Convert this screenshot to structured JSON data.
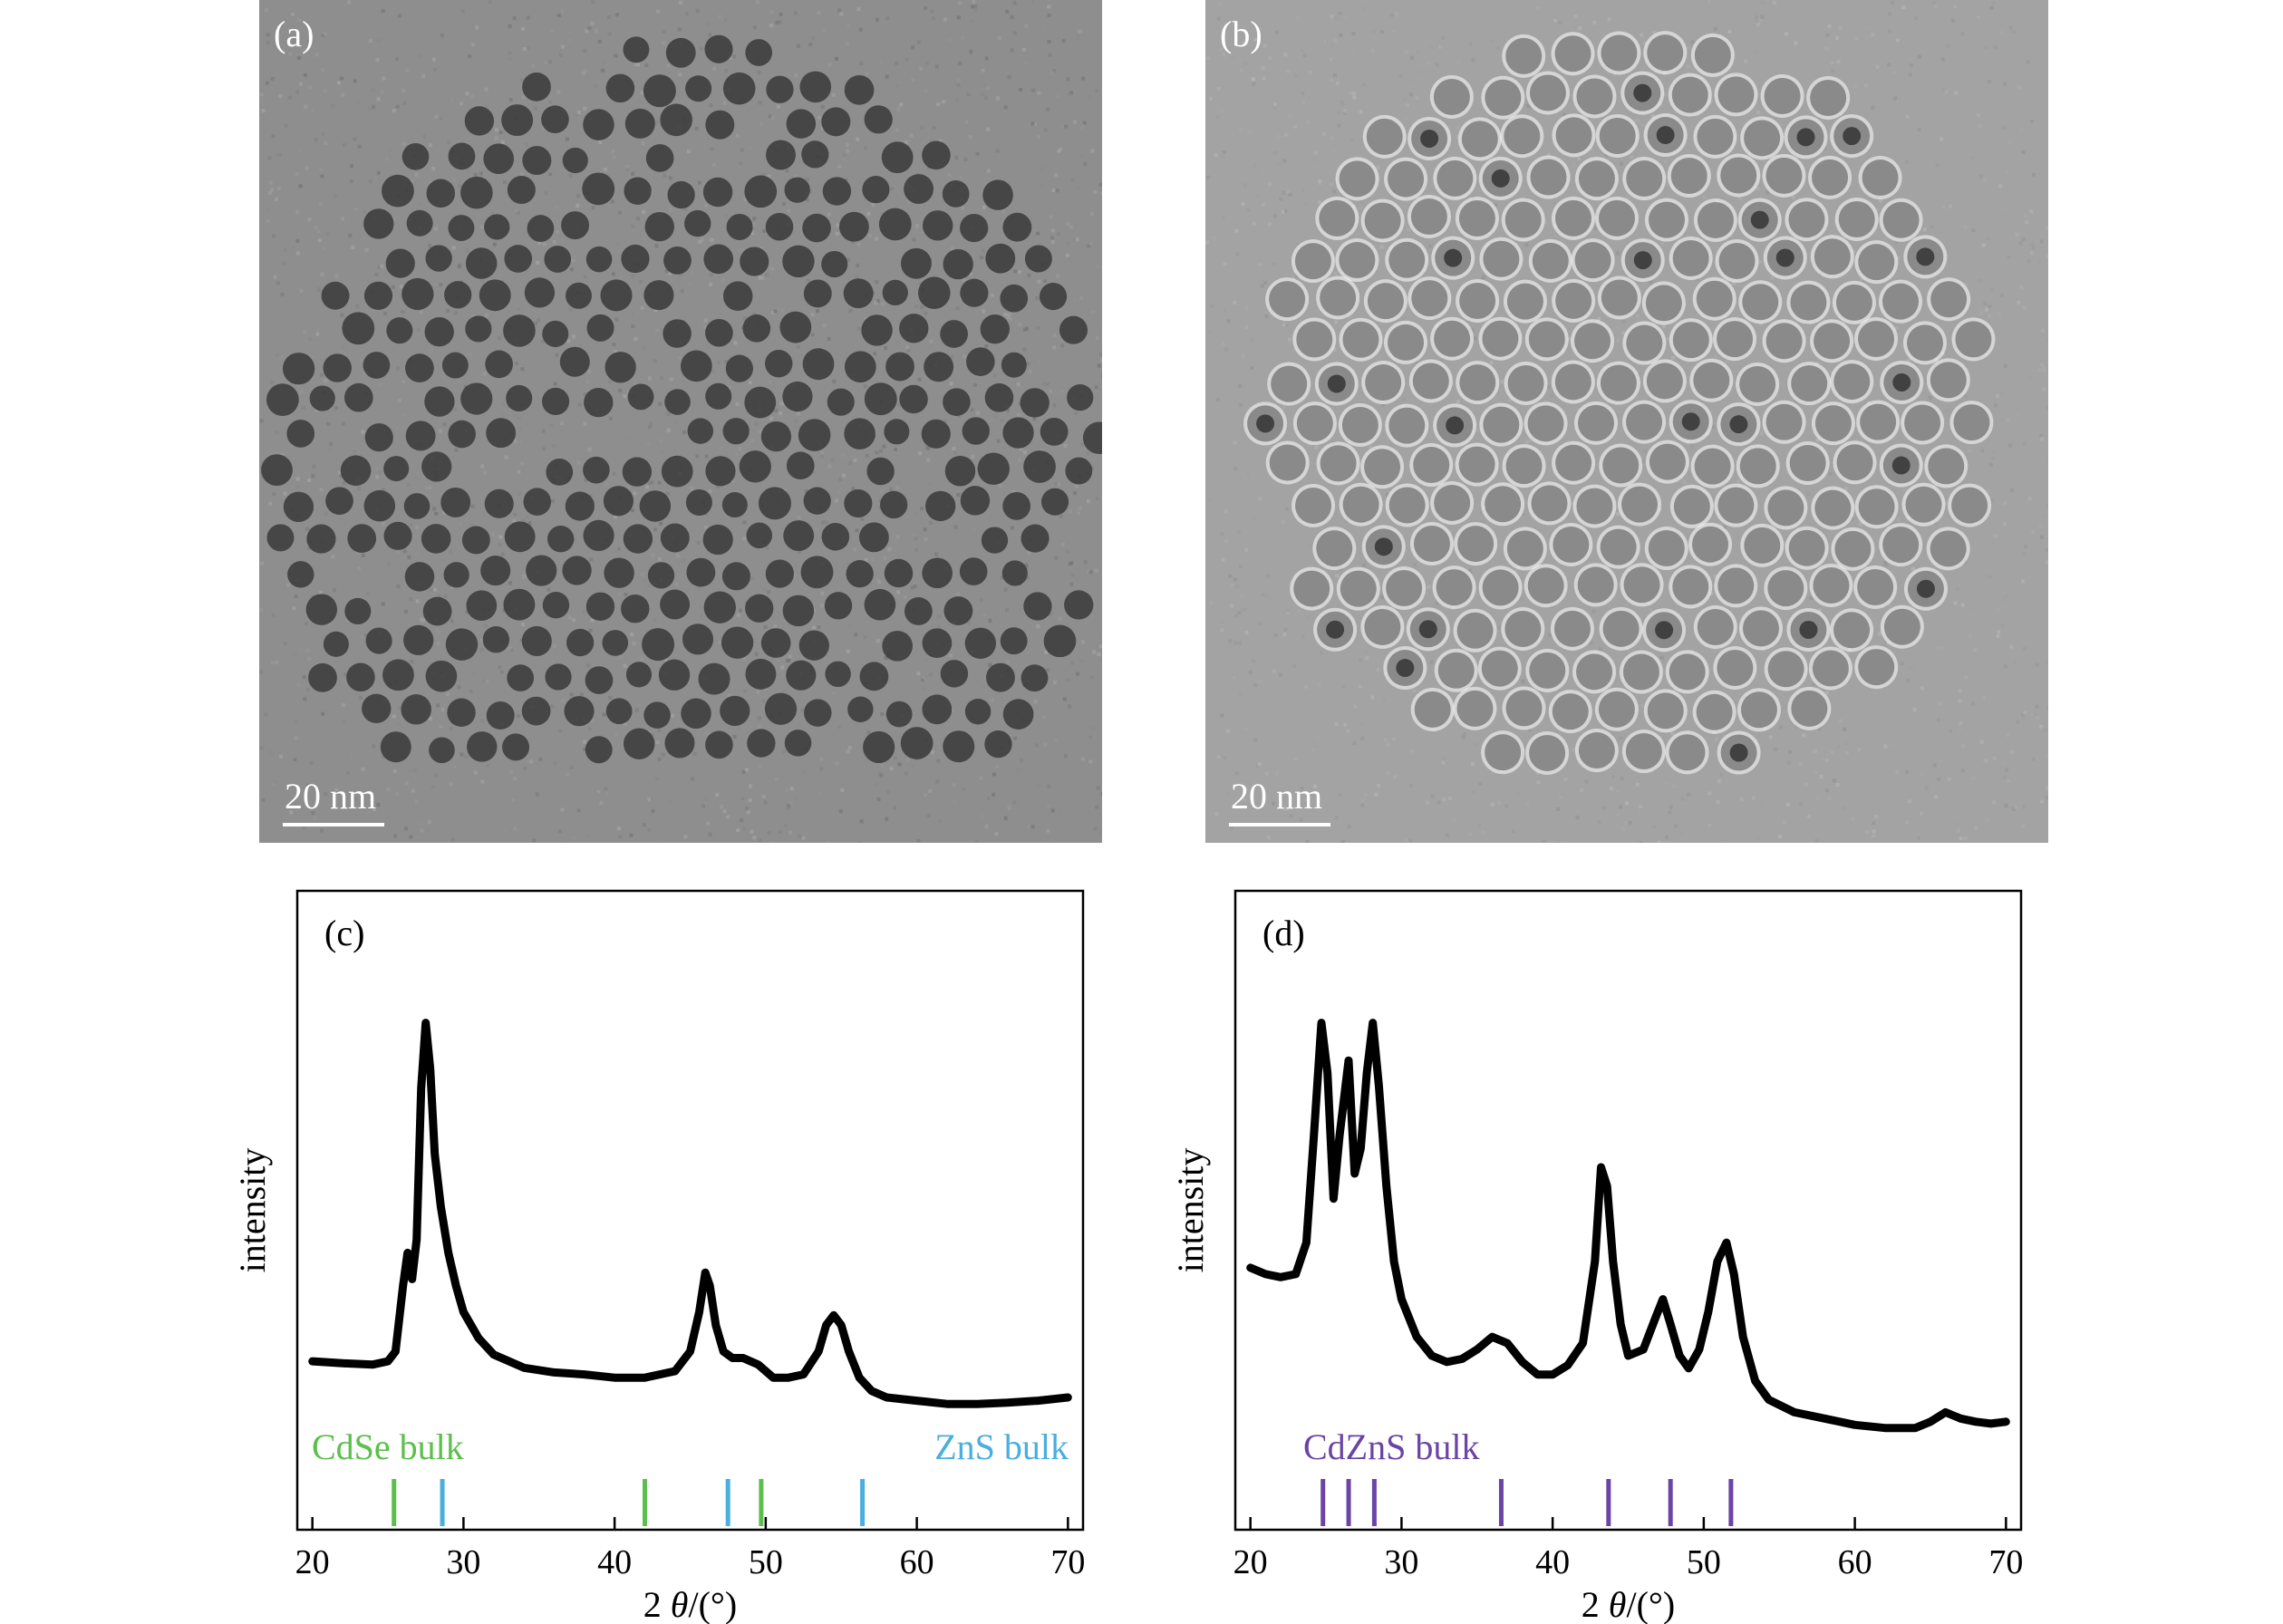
{
  "tem_panels": [
    {
      "label": "(a)",
      "scale_text": "20 nm"
    },
    {
      "label": "(b)",
      "scale_text": "20 nm"
    }
  ],
  "chart_data": [
    {
      "panel": "(c)",
      "type": "line",
      "xlabel_prefix": "2 ",
      "xlabel_italic": "θ",
      "xlabel_suffix": "/(°)",
      "ylabel": "intensity",
      "xlim": [
        19,
        71
      ],
      "xticks": [
        20,
        30,
        40,
        50,
        60,
        70
      ],
      "series": [
        {
          "x": [
            20,
            22,
            24,
            25,
            25.5,
            26,
            26.3,
            26.6,
            26.9,
            27.2,
            27.5,
            27.8,
            28.1,
            28.5,
            29,
            29.5,
            30,
            31,
            32,
            34,
            36,
            38,
            40,
            42,
            44,
            45,
            45.6,
            46,
            46.3,
            46.7,
            47.2,
            47.8,
            48.5,
            49.5,
            50.5,
            51.5,
            52.5,
            53.5,
            54,
            54.5,
            55,
            55.5,
            56.2,
            57,
            58,
            60,
            62,
            64,
            66,
            68,
            70
          ],
          "y": [
            13.5,
            13.2,
            13,
            13.5,
            15,
            25,
            30,
            26,
            32,
            55,
            65,
            58,
            45,
            37,
            30,
            25,
            21,
            17,
            14.5,
            12.5,
            11.8,
            11.5,
            11,
            11,
            12,
            15,
            21,
            27,
            25,
            19,
            15,
            14,
            14,
            13,
            11,
            11,
            11.5,
            15,
            19,
            20.5,
            19,
            15,
            11,
            9,
            8,
            7.5,
            7,
            7,
            7.2,
            7.5,
            8
          ]
        }
      ],
      "references": [
        {
          "name": "CdSe bulk",
          "color": "#5cbf4c",
          "positions": [
            25.4,
            42.0,
            49.7
          ]
        },
        {
          "name": "ZnS bulk",
          "color": "#4aaede",
          "positions": [
            28.6,
            47.5,
            56.4
          ]
        }
      ]
    },
    {
      "panel": "(d)",
      "type": "line",
      "xlabel_prefix": "2 ",
      "xlabel_italic": "θ",
      "xlabel_suffix": "/(°)",
      "ylabel": "intensity",
      "xlim": [
        19,
        71
      ],
      "xticks": [
        20,
        30,
        40,
        50,
        60,
        70
      ],
      "series": [
        {
          "x": [
            20,
            21,
            22,
            23,
            23.7,
            24.2,
            24.7,
            25.1,
            25.5,
            25.9,
            26.5,
            26.9,
            27.3,
            27.7,
            28.1,
            28.5,
            29,
            29.5,
            30,
            31,
            32,
            33,
            34,
            35,
            36,
            37,
            38,
            39,
            40,
            41,
            42,
            42.8,
            43.2,
            43.6,
            44,
            44.5,
            45,
            46,
            46.8,
            47.3,
            47.8,
            48.4,
            49,
            49.7,
            50.3,
            50.9,
            51.5,
            52,
            52.6,
            53.4,
            54.3,
            56,
            58,
            60,
            62,
            64,
            65,
            66,
            67,
            68,
            69,
            70
          ],
          "y": [
            29,
            28,
            27.5,
            28,
            33,
            50,
            68,
            60,
            40,
            50,
            62,
            44,
            48,
            60,
            68,
            58,
            42,
            30,
            24,
            18,
            15,
            14,
            14.5,
            16,
            18,
            17,
            14,
            12,
            12,
            13.5,
            17,
            30,
            45,
            42,
            30,
            20,
            15,
            16,
            21,
            24,
            20,
            15,
            13,
            16,
            22,
            30,
            33,
            28,
            18,
            11,
            8,
            6,
            5,
            4,
            3.5,
            3.5,
            4.5,
            6,
            5,
            4.5,
            4.2,
            4.5
          ]
        }
      ],
      "references": [
        {
          "name": "CdZnS bulk",
          "color": "#6a44a6",
          "positions": [
            24.8,
            26.5,
            28.2,
            36.6,
            43.7,
            47.8,
            51.8
          ]
        }
      ]
    }
  ]
}
